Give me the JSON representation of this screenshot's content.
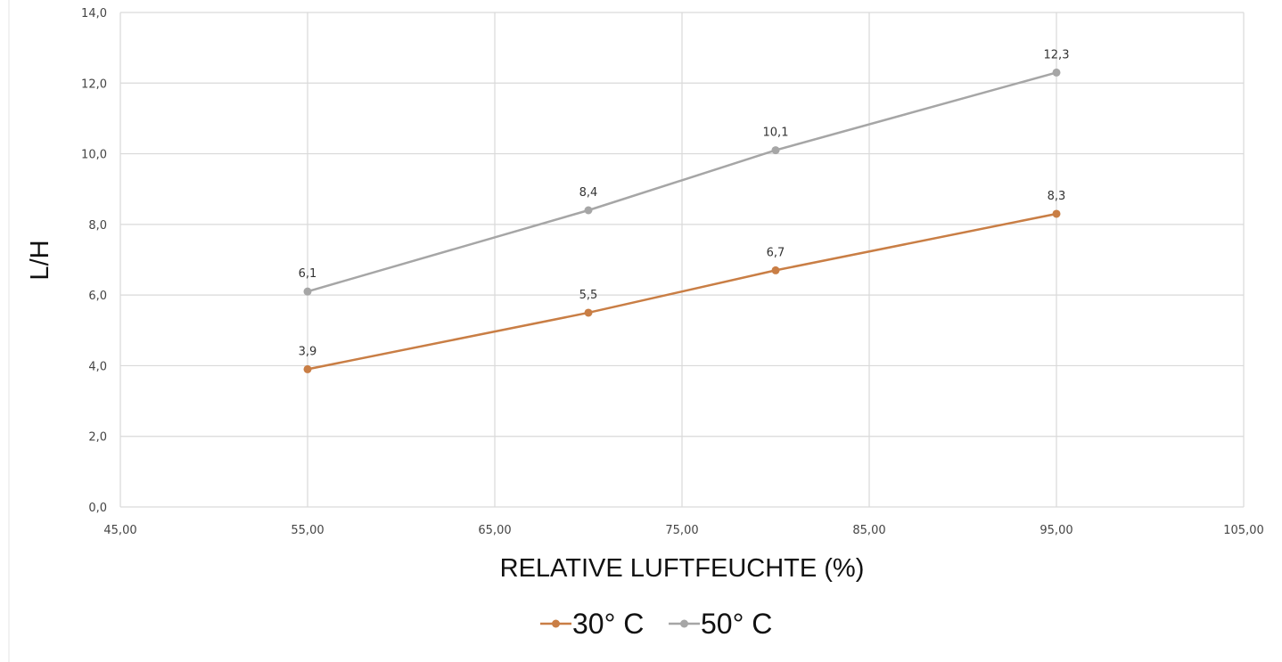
{
  "chart_data": {
    "type": "line",
    "xlabel": "RELATIVE LUFTFEUCHTE (%)",
    "ylabel": "L/H",
    "xlim": [
      45,
      105
    ],
    "ylim": [
      0,
      14
    ],
    "x_ticks": [
      "45,00",
      "55,00",
      "65,00",
      "75,00",
      "85,00",
      "95,00",
      "105,00"
    ],
    "y_ticks": [
      "0,0",
      "2,0",
      "4,0",
      "6,0",
      "8,0",
      "10,0",
      "12,0",
      "14,0"
    ],
    "grid": true,
    "legend": "bottom",
    "series": [
      {
        "name": "30° C",
        "color": "#c97e45",
        "points": [
          {
            "x": 55,
            "y": 3.9,
            "label": "3,9"
          },
          {
            "x": 70,
            "y": 5.5,
            "label": "5,5"
          },
          {
            "x": 80,
            "y": 6.7,
            "label": "6,7"
          },
          {
            "x": 95,
            "y": 8.3,
            "label": "8,3"
          }
        ]
      },
      {
        "name": "50° C",
        "color": "#a6a6a6",
        "points": [
          {
            "x": 55,
            "y": 6.1,
            "label": "6,1"
          },
          {
            "x": 70,
            "y": 8.4,
            "label": "8,4"
          },
          {
            "x": 80,
            "y": 10.1,
            "label": "10,1"
          },
          {
            "x": 95,
            "y": 12.3,
            "label": "12,3"
          }
        ]
      }
    ]
  }
}
